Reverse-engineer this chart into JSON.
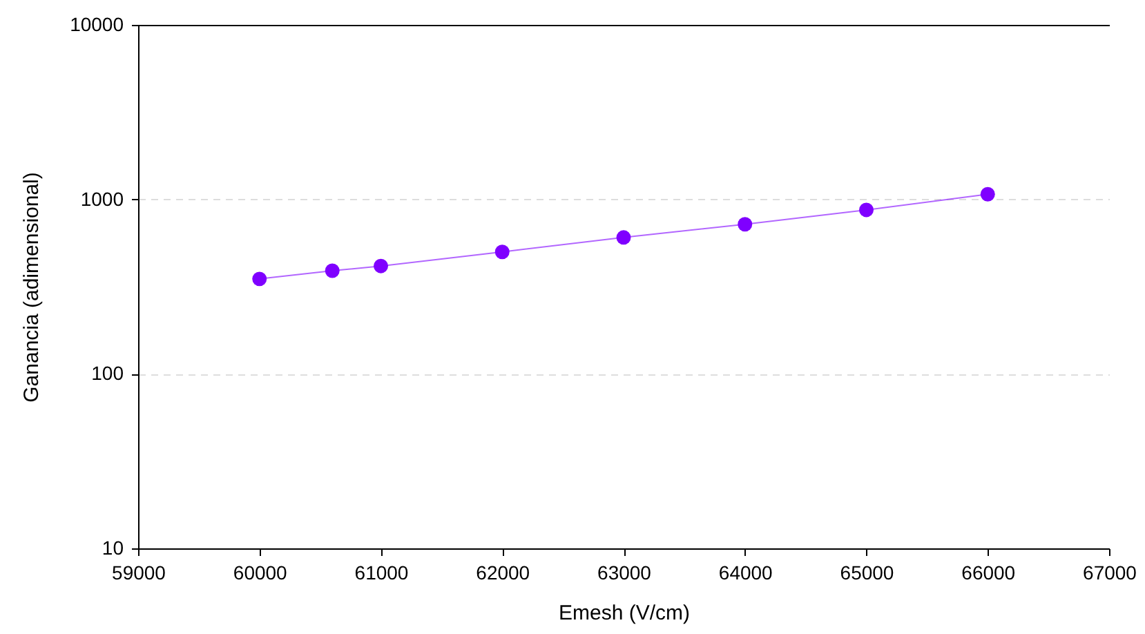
{
  "chart_data": {
    "type": "line",
    "xlabel": "Emesh (V/cm)",
    "ylabel": "Ganancia (adimensional)",
    "x": [
      60000,
      60600,
      61000,
      62000,
      63000,
      64000,
      65000,
      66000
    ],
    "series": [
      {
        "color": "#7f00ff",
        "values": [
          350,
          390,
          415,
          500,
          605,
          720,
          870,
          1070
        ]
      }
    ],
    "xlim": [
      59000,
      67000
    ],
    "xticks": [
      59000,
      60000,
      61000,
      62000,
      63000,
      64000,
      65000,
      66000,
      67000
    ],
    "ylim": [
      10,
      10000
    ],
    "yticks": [
      10,
      100,
      1000,
      10000
    ],
    "log": "y",
    "grid": "y",
    "marker": "circle",
    "line_style": "solid"
  }
}
